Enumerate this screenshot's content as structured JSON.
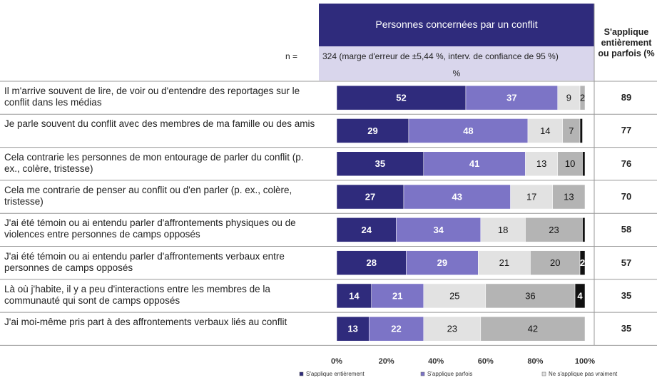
{
  "chart_data": {
    "type": "stacked-bar-h",
    "header": "Personnes concernées par un conflit",
    "n_label": "n =",
    "n_text": "324 (marge d'erreur de ±5,44 %, interv. de confiance de 95 %)",
    "unit_label": "%",
    "right_header": "S'applique entièrement ou parfois (%",
    "categories": [
      "Il m'arrive souvent de lire, de voir ou d'entendre des reportages sur le conflit dans les médias",
      "Je parle souvent du conflit avec des membres de ma famille ou des amis",
      "Cela contrarie les personnes de mon entourage de parler du conflit (p. ex., colère, tristesse)",
      "Cela me contrarie de penser au conflit ou d'en parler (p. ex., colère, tristesse)",
      "J'ai été témoin ou ai entendu parler d'affrontements physiques ou de violences entre personnes de camps opposés",
      "J'ai été témoin ou ai entendu parler d'affrontements verbaux entre personnes de camps opposés",
      "Là où j'habite, il y a peu d'interactions entre les membres de la communauté qui sont de camps opposés",
      "J'ai moi-même pris part à des affrontements verbaux liés au conflit"
    ],
    "right_values": [
      89,
      77,
      76,
      70,
      58,
      57,
      35,
      35
    ],
    "series": [
      {
        "name": "S'applique entièrement",
        "color": "#2f2b7c",
        "values": [
          52,
          29,
          35,
          27,
          24,
          28,
          14,
          13
        ]
      },
      {
        "name": "S'applique parfois",
        "color": "#7c74c6",
        "values": [
          37,
          48,
          41,
          43,
          34,
          29,
          21,
          22
        ]
      },
      {
        "name": "Ne s'applique pas vraiment",
        "color": "#e2e2e2",
        "values": [
          9,
          14,
          13,
          17,
          18,
          21,
          25,
          23
        ]
      },
      {
        "color": "#b4b4b4",
        "values": [
          2,
          7,
          10,
          13,
          23,
          20,
          36,
          42
        ]
      },
      {
        "color": "#111111",
        "values": [
          null,
          1,
          1,
          null,
          1,
          2,
          4,
          null
        ],
        "value_labels": [
          null,
          null,
          null,
          null,
          null,
          "2",
          "4",
          null
        ]
      }
    ],
    "xlim": [
      0,
      100
    ],
    "xticks": [
      {
        "value": 0,
        "label": "0%"
      },
      {
        "value": 20,
        "label": "20%"
      },
      {
        "value": 40,
        "label": "40%"
      },
      {
        "value": 60,
        "label": "60%"
      },
      {
        "value": 80,
        "label": "80%"
      },
      {
        "value": 100,
        "label": "100%"
      }
    ]
  }
}
